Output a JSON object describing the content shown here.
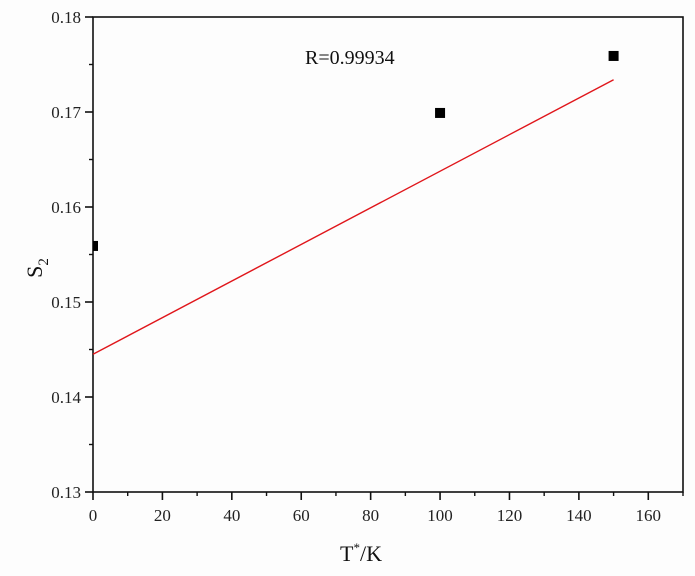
{
  "chart_data": {
    "type": "scatter",
    "title": "",
    "xlabel": "T*/K",
    "ylabel": "S2",
    "xlim": [
      0,
      170
    ],
    "ylim": [
      0.13,
      0.18
    ],
    "x_ticks": [
      0,
      20,
      40,
      60,
      80,
      100,
      120,
      140,
      160
    ],
    "x_tick_labels": [
      "0",
      "20",
      "40",
      "60",
      "80",
      "100",
      "120",
      "140",
      "160"
    ],
    "y_ticks": [
      0.13,
      0.14,
      0.15,
      0.16,
      0.17,
      0.18
    ],
    "y_tick_labels": [
      "0.13",
      "0.14",
      "0.15",
      "0.16",
      "0.17",
      "0.18"
    ],
    "grid": false,
    "legend": null,
    "series": [
      {
        "name": "data",
        "type": "scatter",
        "marker": "square",
        "color": "#000000",
        "x": [
          0,
          100,
          150
        ],
        "y": [
          0.1559,
          0.1699,
          0.1759
        ]
      },
      {
        "name": "linear fit",
        "type": "line",
        "color": "#e0161b",
        "x": [
          0,
          150
        ],
        "y": [
          0.1445,
          0.1734
        ]
      }
    ],
    "annotations": [
      {
        "text": "R=0.99934",
        "x": 70,
        "y": 0.1775
      }
    ]
  },
  "labels": {
    "annotation": "R=0.99934",
    "xlabel_main": "T",
    "xlabel_sup": "*",
    "xlabel_tail": "/K",
    "ylabel_main": "S",
    "ylabel_sub": "2"
  }
}
